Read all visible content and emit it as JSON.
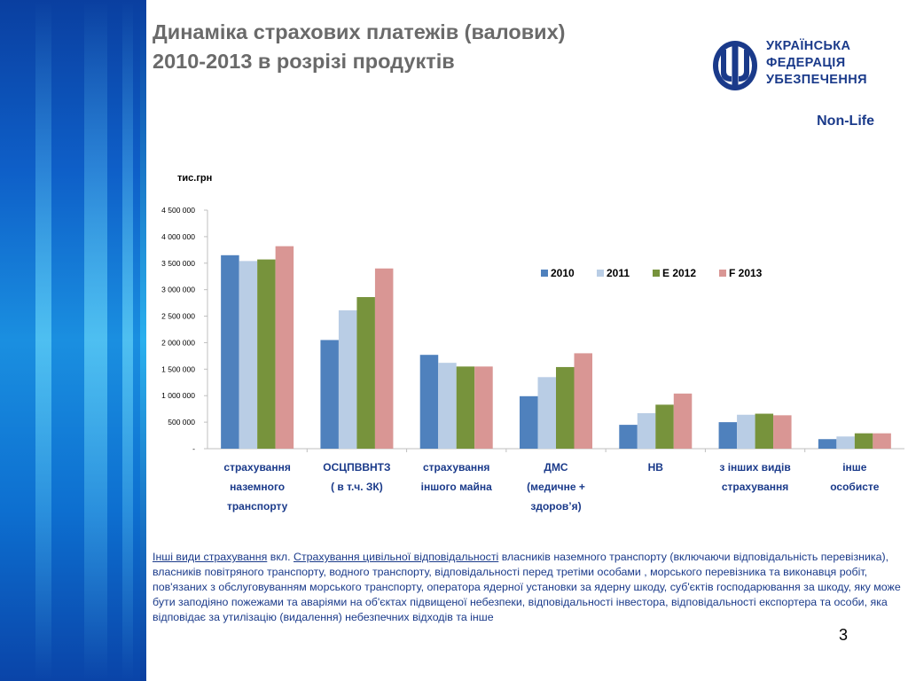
{
  "header": {
    "title_line1": "Динаміка страхових платежів (валових)",
    "title_line2": "2010-2013 в розрізі продуктів"
  },
  "logo": {
    "line1": "УКРАЇНСЬКА",
    "line2": "ФЕДЕРАЦІЯ",
    "line3": "УБЕЗПЕЧЕННЯ"
  },
  "segment_label": "Non-Life",
  "chart_data": {
    "type": "bar",
    "unit_label": "тис.грн",
    "categories": [
      [
        "страхування",
        "наземного",
        "транспорту"
      ],
      [
        "ОСЦПВВНТЗ",
        "( в т.ч. ЗК)"
      ],
      [
        "страхування",
        "іншого майна"
      ],
      [
        "ДМС",
        "(медичне +",
        "здоров’я)"
      ],
      [
        "НВ"
      ],
      [
        "з інших видів",
        "страхування"
      ],
      [
        "інше",
        "особисте"
      ]
    ],
    "series": [
      {
        "name": "2010",
        "color": "#4f81bd",
        "values": [
          3650000,
          2050000,
          1770000,
          990000,
          450000,
          500000,
          180000
        ]
      },
      {
        "name": "2011",
        "color": "#b9cde5",
        "values": [
          3540000,
          2610000,
          1620000,
          1350000,
          670000,
          640000,
          230000
        ]
      },
      {
        "name": "E 2012",
        "color": "#77933c",
        "values": [
          3570000,
          2860000,
          1550000,
          1540000,
          830000,
          660000,
          290000
        ]
      },
      {
        "name": "F 2013",
        "color": "#d99694",
        "values": [
          3820000,
          3400000,
          1550000,
          1800000,
          1040000,
          630000,
          290000
        ]
      }
    ],
    "ylim": [
      0,
      4500000
    ],
    "yticks": [
      "-",
      "500 000",
      "1 000 000",
      "1 500 000",
      "2 000 000",
      "2 500 000",
      "3 000 000",
      "3 500 000",
      "4 000 000",
      "4 500 000"
    ],
    "grid": false,
    "legend_position": "top-right"
  },
  "footnote": {
    "lead": "Інші види страхування",
    "mid": " вкл. ",
    "link": "Страхування цивільної відповідальності",
    "rest": " власників наземного транспорту (включаючи відповідальність перевізника), власників повітряного транспорту, водного транспорту, відповідальності перед третіми особами , морського перевізника та виконавця робіт, пов'язаних з обслуговуванням морського транспорту, оператора ядерної установки за ядерну шкоду, суб'єктів господарювання за шкоду, яку може бути заподіяно пожежами та аваріями на об'єктах підвищеної небезпеки, відповідальності інвестора, відповідальності експортера та особи, яка відповідає за утилізацію (видалення) небезпечних відходів та інше"
  },
  "page_number": "3"
}
